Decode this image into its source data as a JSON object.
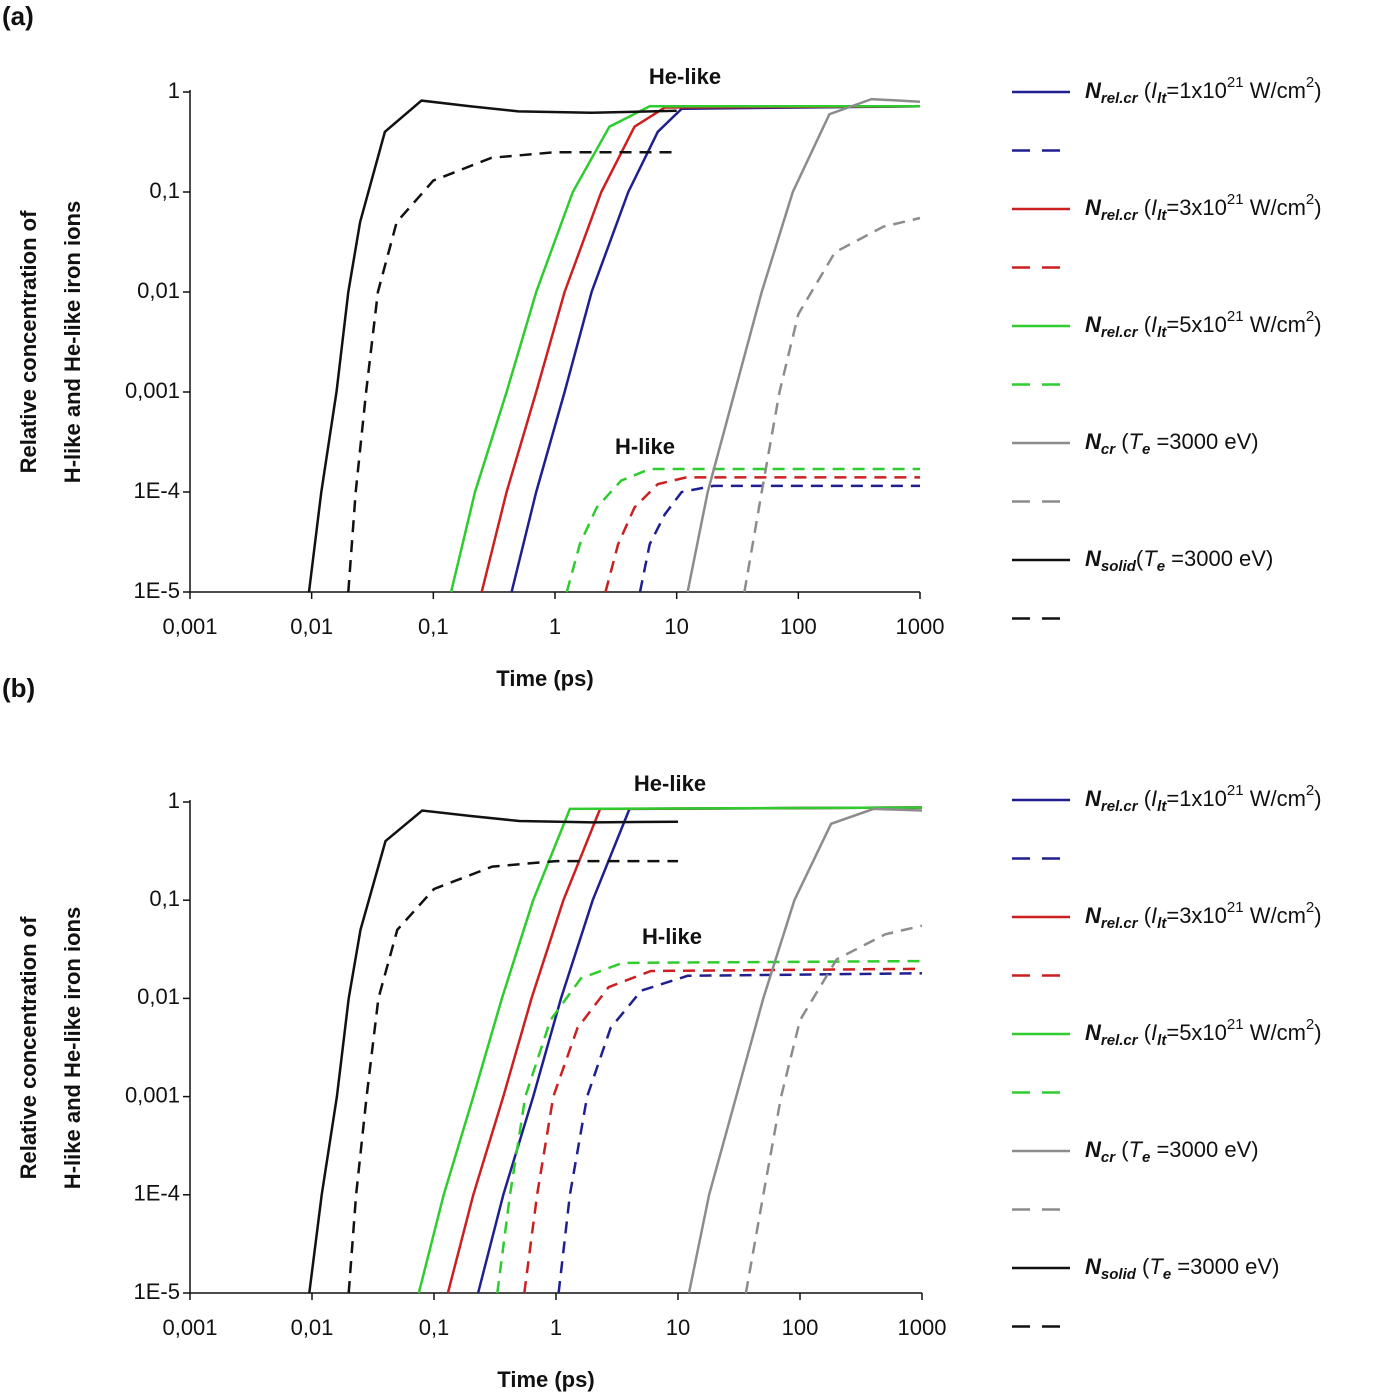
{
  "chart_data": [
    {
      "type": "line",
      "panel_label": "(a)",
      "xlabel": "Time (ps)",
      "ylabel": [
        "Relative concentration of",
        "H-like and He-like iron ions"
      ],
      "annotations": [
        "He-like",
        "H-like"
      ],
      "xscale": "log",
      "yscale": "log",
      "xlim": [
        0.001,
        1000
      ],
      "ylim": [
        1e-05,
        1
      ],
      "xticks": [
        {
          "value": 0.001,
          "label": "0,001"
        },
        {
          "value": 0.01,
          "label": "0,01"
        },
        {
          "value": 0.1,
          "label": "0,1"
        },
        1,
        10,
        100,
        1000
      ],
      "yticks": [
        {
          "value": 1e-05,
          "label": "1E-5"
        },
        {
          "value": 0.0001,
          "label": "1E-4"
        },
        {
          "value": 0.001,
          "label": "0,001"
        },
        {
          "value": 0.01,
          "label": "0,01"
        },
        {
          "value": 0.1,
          "label": "0,1"
        },
        1
      ],
      "series": [
        {
          "name": [
            {
              "text": "N",
              "style": "bi"
            },
            {
              "text": "rel.cr",
              "style": "bi-sub"
            },
            {
              "text": " (",
              "style": ""
            },
            {
              "text": "I",
              "style": "i"
            },
            {
              "text": "lt",
              "style": "i-sub"
            },
            {
              "text": "=1x10",
              "style": ""
            },
            {
              "text": "21",
              "style": "sup"
            },
            {
              "text": " W/cm",
              "style": ""
            },
            {
              "text": "2",
              "style": "sup"
            },
            {
              "text": ")",
              "style": ""
            }
          ],
          "color": "#1f1f8f",
          "dashed": false,
          "x": [
            0.44,
            0.7,
            1.2,
            2,
            4,
            7,
            11,
            1000
          ],
          "values": [
            1e-05,
            0.0001,
            0.001,
            0.01,
            0.1,
            0.4,
            0.68,
            0.72
          ]
        },
        {
          "color": "#1f1f8f",
          "dashed": true,
          "x": [
            5,
            6,
            8,
            11,
            20,
            1000
          ],
          "values": [
            1e-05,
            3e-05,
            6e-05,
            0.0001,
            0.000115,
            0.000115
          ]
        },
        {
          "name": [
            {
              "text": "N",
              "style": "bi"
            },
            {
              "text": "rel.cr",
              "style": "bi-sub"
            },
            {
              "text": " (",
              "style": ""
            },
            {
              "text": "I",
              "style": "i"
            },
            {
              "text": "lt",
              "style": "i-sub"
            },
            {
              "text": "=3x10",
              "style": ""
            },
            {
              "text": "21",
              "style": "sup"
            },
            {
              "text": " W/cm",
              "style": ""
            },
            {
              "text": "2",
              "style": "sup"
            },
            {
              "text": ")",
              "style": ""
            }
          ],
          "color": "#cc1f1f",
          "dashed": false,
          "x": [
            0.25,
            0.4,
            0.7,
            1.2,
            2.4,
            4.5,
            8,
            1000
          ],
          "values": [
            1e-05,
            0.0001,
            0.001,
            0.01,
            0.1,
            0.45,
            0.7,
            0.72
          ]
        },
        {
          "color": "#cc1f1f",
          "dashed": true,
          "x": [
            2.6,
            3.3,
            4.5,
            7,
            12,
            1000
          ],
          "values": [
            1e-05,
            3e-05,
            7e-05,
            0.00012,
            0.00014,
            0.00014
          ]
        },
        {
          "name": [
            {
              "text": "N",
              "style": "bi"
            },
            {
              "text": "rel.cr",
              "style": "bi-sub"
            },
            {
              "text": " (",
              "style": ""
            },
            {
              "text": "I",
              "style": "i"
            },
            {
              "text": "lt",
              "style": "i-sub"
            },
            {
              "text": "=5x10",
              "style": ""
            },
            {
              "text": "21",
              "style": "sup"
            },
            {
              "text": " W/cm",
              "style": ""
            },
            {
              "text": "2",
              "style": "sup"
            },
            {
              "text": ")",
              "style": ""
            }
          ],
          "color": "#2ecc2e",
          "dashed": false,
          "x": [
            0.14,
            0.22,
            0.4,
            0.7,
            1.4,
            2.8,
            6,
            1000
          ],
          "values": [
            1e-05,
            0.0001,
            0.001,
            0.01,
            0.1,
            0.45,
            0.72,
            0.72
          ]
        },
        {
          "color": "#2ecc2e",
          "dashed": true,
          "x": [
            1.25,
            1.6,
            2.2,
            3.5,
            6,
            1000
          ],
          "values": [
            1e-05,
            3e-05,
            7e-05,
            0.00013,
            0.00017,
            0.00017
          ]
        },
        {
          "name": [
            {
              "text": "N",
              "style": "bi"
            },
            {
              "text": "cr",
              "style": "bi-sub"
            },
            {
              "text": " (",
              "style": ""
            },
            {
              "text": "T",
              "style": "i"
            },
            {
              "text": "e",
              "style": "i-sub"
            },
            {
              "text": " =3000 eV)",
              "style": ""
            }
          ],
          "color": "#8c8c8c",
          "dashed": false,
          "x": [
            12.3,
            18,
            30,
            50,
            90,
            180,
            400,
            1000
          ],
          "values": [
            1e-05,
            0.0001,
            0.001,
            0.01,
            0.1,
            0.6,
            0.85,
            0.8
          ]
        },
        {
          "color": "#8c8c8c",
          "dashed": true,
          "x": [
            36,
            50,
            70,
            100,
            200,
            500,
            1000
          ],
          "values": [
            1e-05,
            0.0001,
            0.001,
            0.006,
            0.025,
            0.045,
            0.055
          ]
        },
        {
          "name": [
            {
              "text": "N",
              "style": "bi"
            },
            {
              "text": "solid",
              "style": "bi-sub"
            },
            {
              "text": "(",
              "style": ""
            },
            {
              "text": "T",
              "style": "i"
            },
            {
              "text": "e",
              "style": "i-sub"
            },
            {
              "text": " =3000 eV)",
              "style": ""
            }
          ],
          "color": "#111111",
          "dashed": false,
          "x": [
            0.0095,
            0.012,
            0.016,
            0.02,
            0.025,
            0.04,
            0.08,
            0.2,
            0.5,
            2,
            10
          ],
          "values": [
            1e-05,
            0.0001,
            0.001,
            0.01,
            0.05,
            0.4,
            0.82,
            0.72,
            0.64,
            0.62,
            0.65
          ]
        },
        {
          "color": "#111111",
          "dashed": true,
          "x": [
            0.02,
            0.023,
            0.028,
            0.035,
            0.05,
            0.1,
            0.3,
            1,
            10
          ],
          "values": [
            1e-05,
            0.0001,
            0.001,
            0.01,
            0.05,
            0.13,
            0.22,
            0.25,
            0.25
          ]
        }
      ]
    },
    {
      "type": "line",
      "panel_label": "(b)",
      "xlabel": "Time (ps)",
      "ylabel": [
        "Relative concentration of",
        "H-like and He-like iron ions"
      ],
      "annotations": [
        "He-like",
        "H-like"
      ],
      "xscale": "log",
      "yscale": "log",
      "xlim": [
        0.001,
        1000
      ],
      "ylim": [
        1e-05,
        1
      ],
      "xticks": [
        {
          "value": 0.001,
          "label": "0,001"
        },
        {
          "value": 0.01,
          "label": "0,01"
        },
        {
          "value": 0.1,
          "label": "0,1"
        },
        1,
        10,
        100,
        1000
      ],
      "yticks": [
        {
          "value": 1e-05,
          "label": "1E-5"
        },
        {
          "value": 0.0001,
          "label": "1E-4"
        },
        {
          "value": 0.001,
          "label": "0,001"
        },
        {
          "value": 0.01,
          "label": "0,01"
        },
        {
          "value": 0.1,
          "label": "0,1"
        },
        1
      ],
      "series": [
        {
          "name": [
            {
              "text": "N",
              "style": "bi"
            },
            {
              "text": "rel.cr",
              "style": "bi-sub"
            },
            {
              "text": " (",
              "style": ""
            },
            {
              "text": "I",
              "style": "i"
            },
            {
              "text": "lt",
              "style": "i-sub"
            },
            {
              "text": "=1x10",
              "style": ""
            },
            {
              "text": "21",
              "style": "sup"
            },
            {
              "text": " W/cm",
              "style": ""
            },
            {
              "text": "2",
              "style": "sup"
            },
            {
              "text": ")",
              "style": ""
            }
          ],
          "color": "#1f1f8f",
          "dashed": false,
          "x": [
            0.23,
            0.37,
            0.65,
            1.1,
            2,
            4,
            1000
          ],
          "values": [
            1e-05,
            0.0001,
            0.001,
            0.01,
            0.1,
            0.85,
            0.88
          ]
        },
        {
          "color": "#1f1f8f",
          "dashed": true,
          "x": [
            1.05,
            1.3,
            1.8,
            2.8,
            5,
            12,
            1000
          ],
          "values": [
            1e-05,
            0.0001,
            0.001,
            0.005,
            0.012,
            0.017,
            0.018
          ]
        },
        {
          "name": [
            {
              "text": "N",
              "style": "bi"
            },
            {
              "text": "rel.cr",
              "style": "bi-sub"
            },
            {
              "text": " (",
              "style": ""
            },
            {
              "text": "I",
              "style": "i"
            },
            {
              "text": "lt",
              "style": "i-sub"
            },
            {
              "text": "=3x10",
              "style": ""
            },
            {
              "text": "21",
              "style": "sup"
            },
            {
              "text": " W/cm",
              "style": ""
            },
            {
              "text": "2",
              "style": "sup"
            },
            {
              "text": ")",
              "style": ""
            }
          ],
          "color": "#cc1f1f",
          "dashed": false,
          "x": [
            0.13,
            0.21,
            0.37,
            0.63,
            1.15,
            2.3,
            1000
          ],
          "values": [
            1e-05,
            0.0001,
            0.001,
            0.01,
            0.1,
            0.85,
            0.88
          ]
        },
        {
          "color": "#cc1f1f",
          "dashed": true,
          "x": [
            0.55,
            0.7,
            0.95,
            1.5,
            2.7,
            6,
            1000
          ],
          "values": [
            1e-05,
            0.0001,
            0.001,
            0.005,
            0.013,
            0.019,
            0.02
          ]
        },
        {
          "name": [
            {
              "text": "N",
              "style": "bi"
            },
            {
              "text": "rel.cr",
              "style": "bi-sub"
            },
            {
              "text": " (",
              "style": ""
            },
            {
              "text": "I",
              "style": "i"
            },
            {
              "text": "lt",
              "style": "i-sub"
            },
            {
              "text": "=5x10",
              "style": ""
            },
            {
              "text": "21",
              "style": "sup"
            },
            {
              "text": " W/cm",
              "style": ""
            },
            {
              "text": "2",
              "style": "sup"
            },
            {
              "text": ")",
              "style": ""
            }
          ],
          "color": "#2ecc2e",
          "dashed": false,
          "x": [
            0.075,
            0.12,
            0.21,
            0.36,
            0.65,
            1.3,
            1000
          ],
          "values": [
            1e-05,
            0.0001,
            0.001,
            0.01,
            0.1,
            0.85,
            0.88
          ]
        },
        {
          "color": "#2ecc2e",
          "dashed": true,
          "x": [
            0.33,
            0.42,
            0.56,
            0.9,
            1.6,
            3.5,
            1000
          ],
          "values": [
            1e-05,
            0.0001,
            0.001,
            0.006,
            0.016,
            0.023,
            0.024
          ]
        },
        {
          "name": [
            {
              "text": "N",
              "style": "bi"
            },
            {
              "text": "cr",
              "style": "bi-sub"
            },
            {
              "text": " (",
              "style": ""
            },
            {
              "text": "T",
              "style": "i"
            },
            {
              "text": "e",
              "style": "i-sub"
            },
            {
              "text": " =3000 eV)",
              "style": ""
            }
          ],
          "color": "#8c8c8c",
          "dashed": false,
          "x": [
            12.3,
            18,
            30,
            50,
            90,
            180,
            400,
            1000
          ],
          "values": [
            1e-05,
            0.0001,
            0.001,
            0.01,
            0.1,
            0.6,
            0.85,
            0.82
          ]
        },
        {
          "color": "#8c8c8c",
          "dashed": true,
          "x": [
            36,
            50,
            70,
            100,
            200,
            500,
            1000
          ],
          "values": [
            1e-05,
            0.0001,
            0.001,
            0.006,
            0.025,
            0.045,
            0.055
          ]
        },
        {
          "name": [
            {
              "text": "N",
              "style": "bi"
            },
            {
              "text": "solid",
              "style": "bi-sub"
            },
            {
              "text": " (",
              "style": ""
            },
            {
              "text": "T",
              "style": "i"
            },
            {
              "text": "e",
              "style": "i-sub"
            },
            {
              "text": " =3000 eV)",
              "style": ""
            }
          ],
          "color": "#111111",
          "dashed": false,
          "x": [
            0.0095,
            0.012,
            0.016,
            0.02,
            0.025,
            0.04,
            0.08,
            0.2,
            0.5,
            2,
            10
          ],
          "values": [
            1e-05,
            0.0001,
            0.001,
            0.01,
            0.05,
            0.4,
            0.82,
            0.72,
            0.64,
            0.62,
            0.63
          ]
        },
        {
          "color": "#111111",
          "dashed": true,
          "x": [
            0.02,
            0.023,
            0.028,
            0.035,
            0.05,
            0.1,
            0.3,
            1,
            10
          ],
          "values": [
            1e-05,
            0.0001,
            0.001,
            0.01,
            0.05,
            0.13,
            0.22,
            0.25,
            0.25
          ]
        }
      ]
    }
  ]
}
